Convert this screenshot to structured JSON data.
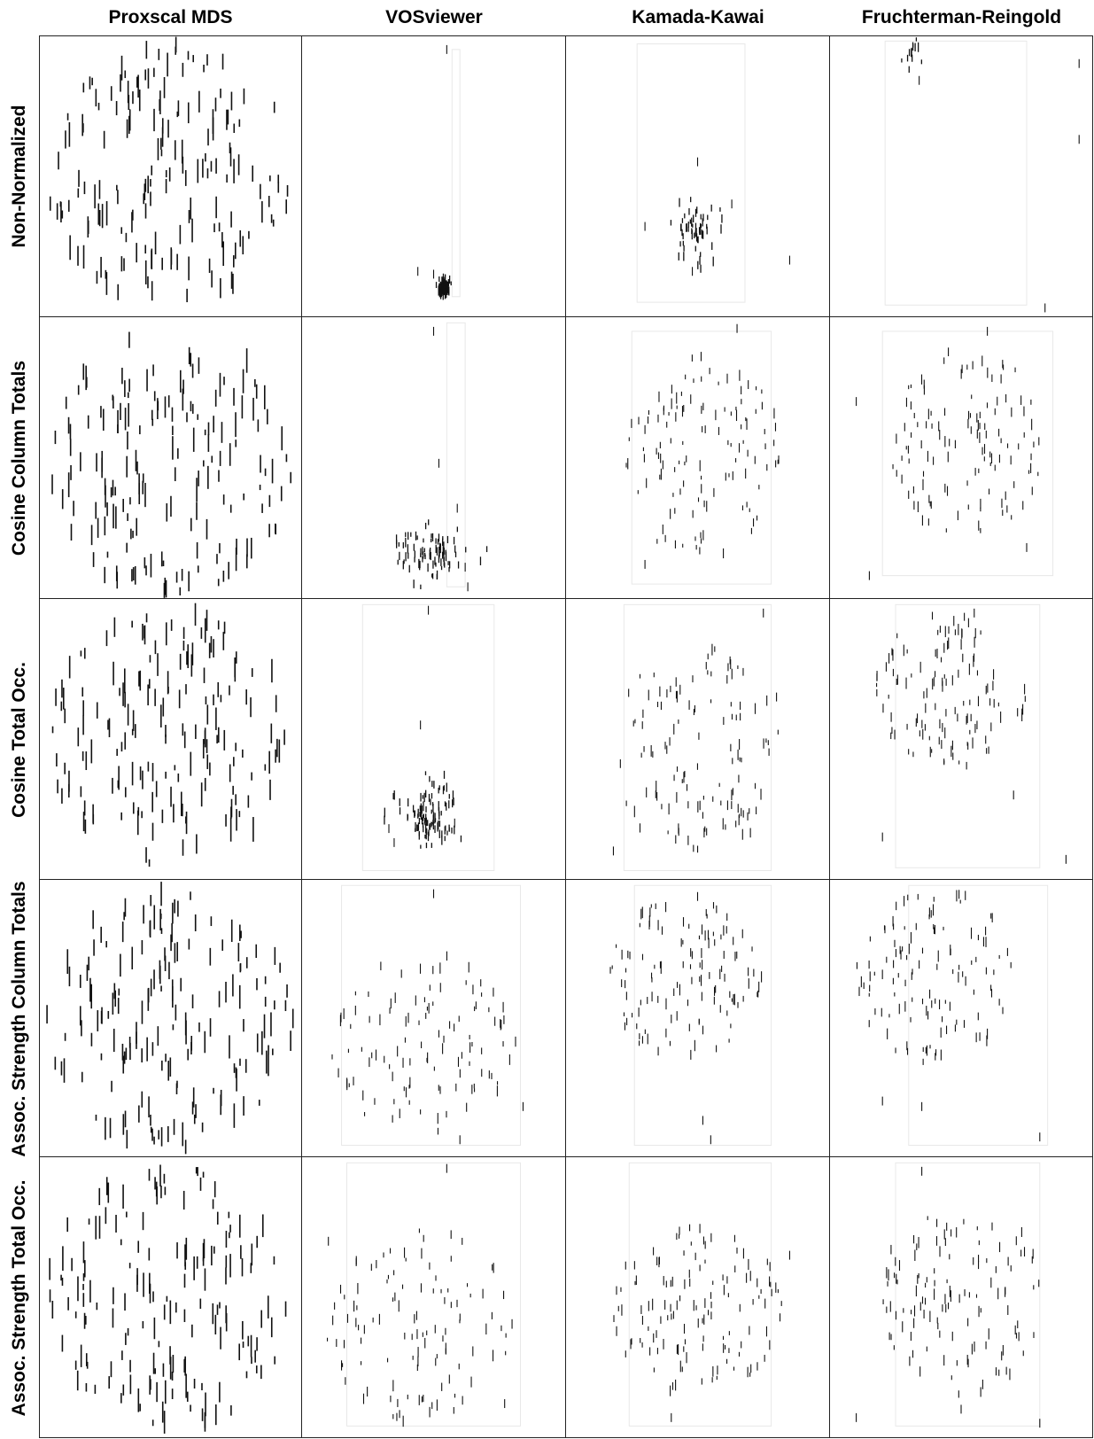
{
  "columns": [
    "Proxscal MDS",
    "VOSviewer",
    "Kamada-Kawai",
    "Fruchterman-Reingold"
  ],
  "rows": [
    "Non-Normalized",
    "Cosine Column Totals",
    "Cosine Total Occ.",
    "Assoc. Strength Column Totals",
    "Assoc. Strength Total Occ."
  ],
  "colors": {
    "ink": "#111111",
    "grid": "#222222",
    "frame": "#e8e8e8"
  }
}
